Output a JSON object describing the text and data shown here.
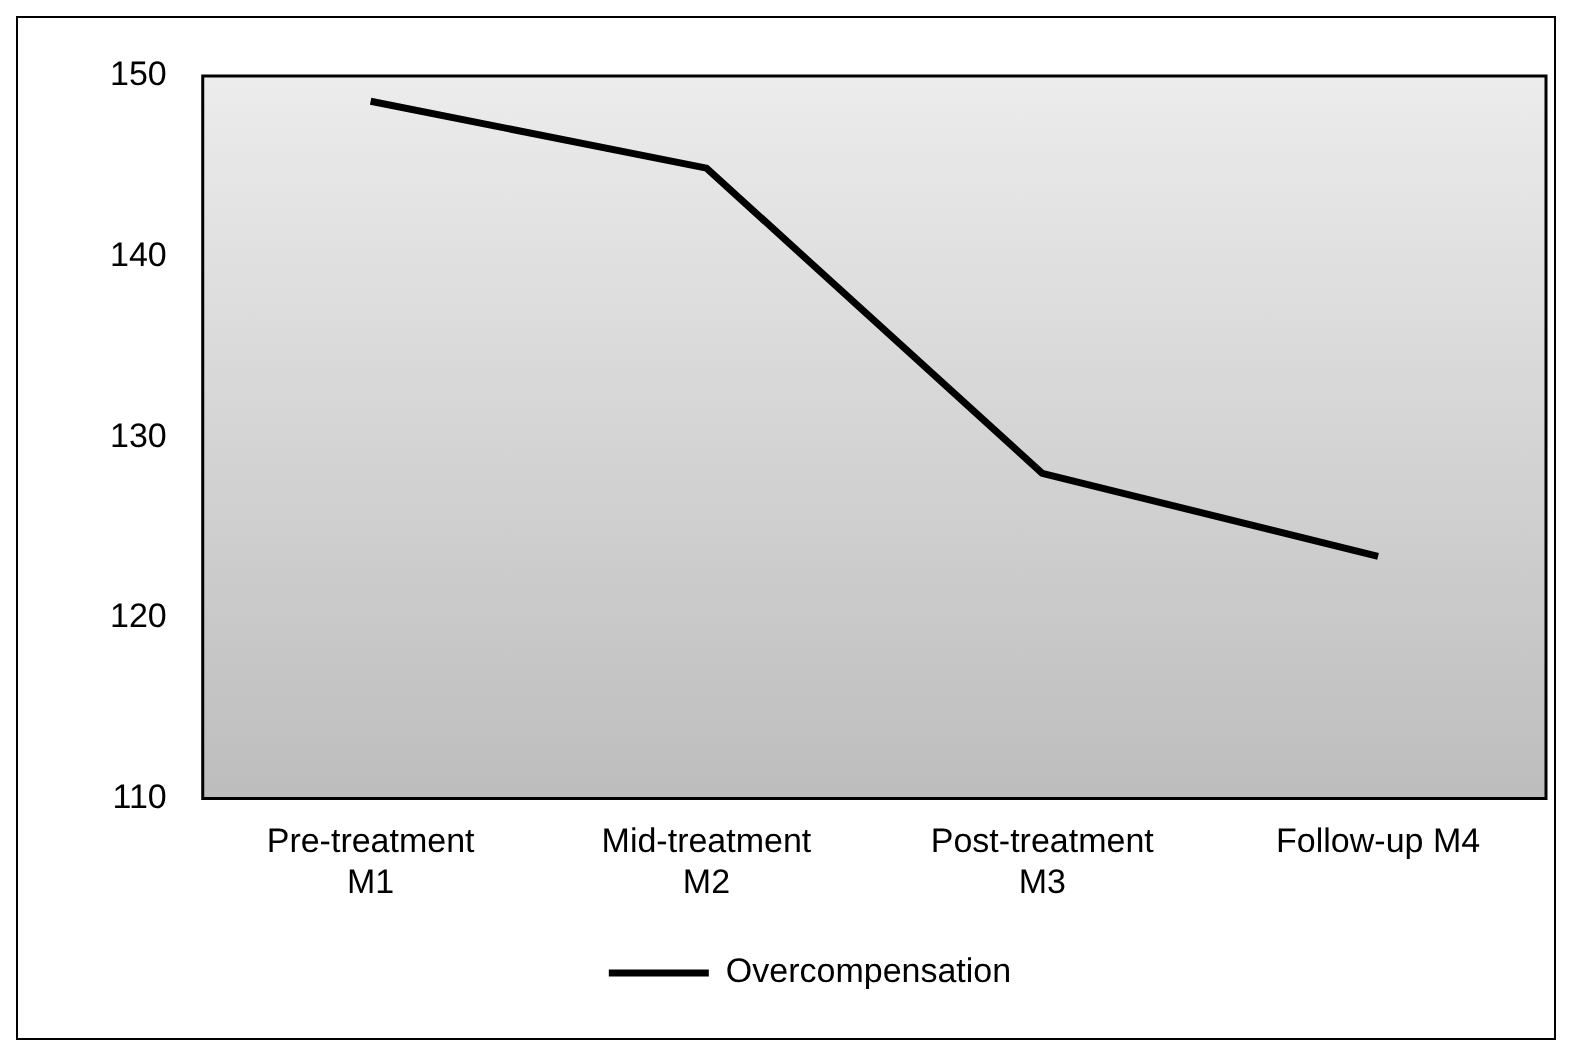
{
  "chart_data": {
    "type": "line",
    "categories": [
      "Pre-treatment M1",
      "Mid-treatment M2",
      "Post-treatment M3",
      "Follow-up M4"
    ],
    "series": [
      {
        "name": "Overcompensation",
        "color": "#000000",
        "values": [
          148.6,
          144.9,
          128.0,
          123.4
        ]
      }
    ],
    "ylim": [
      110,
      150
    ],
    "yticks": [
      110,
      120,
      130,
      140,
      150
    ],
    "grid": false,
    "legend": "bottom",
    "marker": "none",
    "line_style": "solid"
  }
}
